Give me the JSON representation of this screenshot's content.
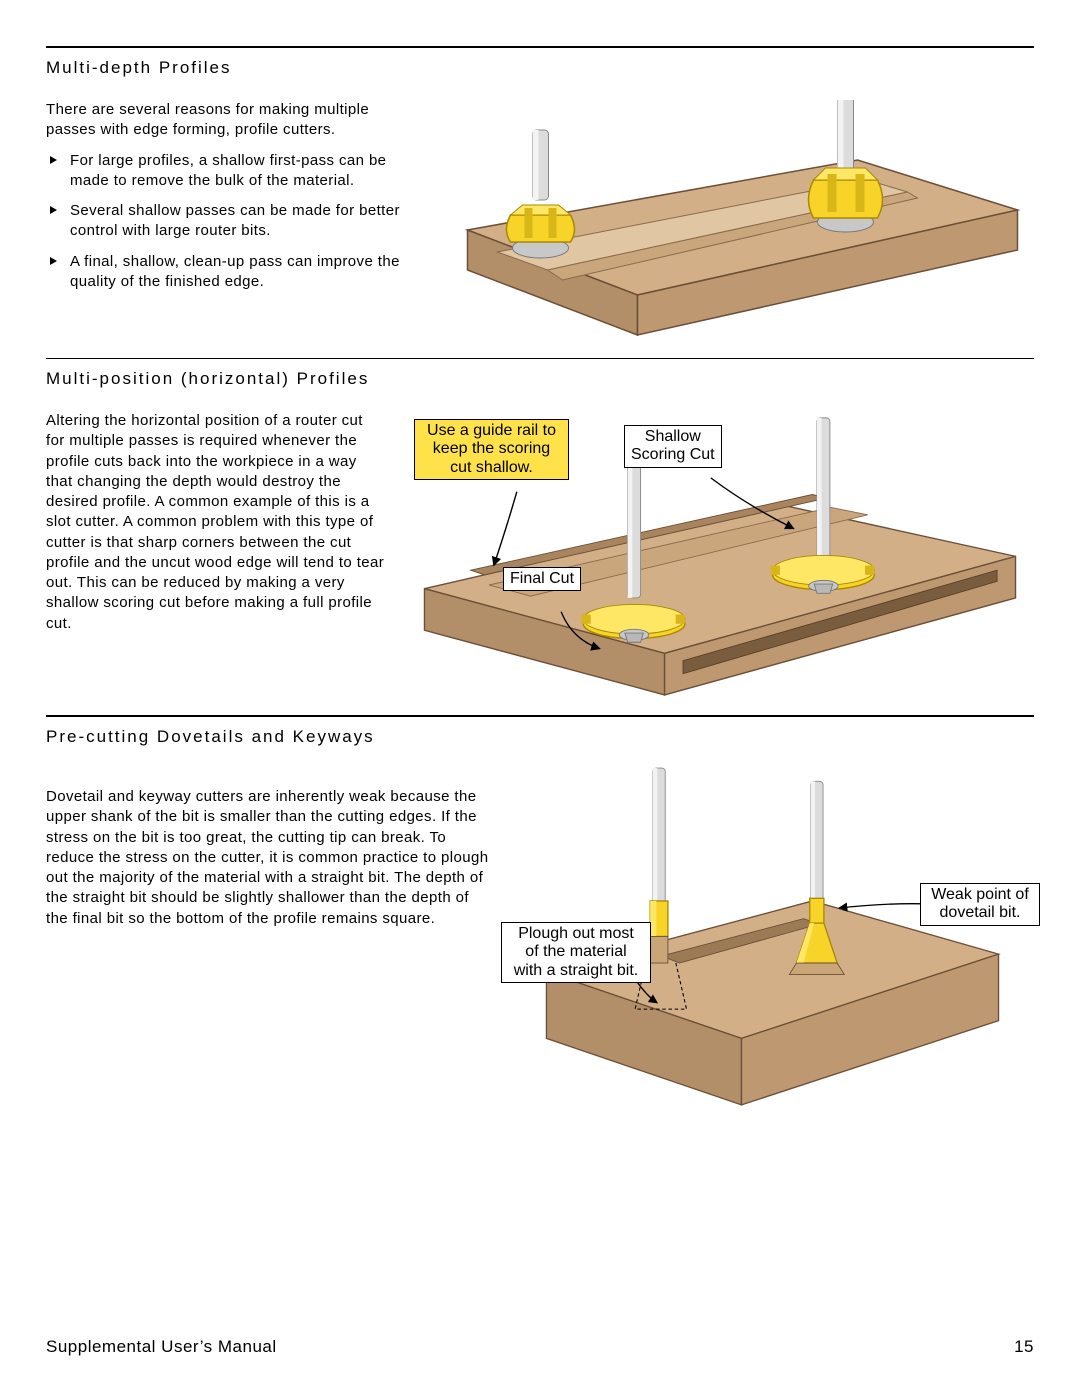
{
  "colors": {
    "wood_top": "#c7a683",
    "wood_top_light": "#d8b995",
    "wood_side": "#ae8b67",
    "wood_front": "#bb9772",
    "wood_cut": "#e0c6a2",
    "outline": "#6b4f36",
    "shank_grey": "#dcdcdc",
    "shank_shadow": "#a9a9a9",
    "cutter_yellow": "#f7d427",
    "cutter_yellow_dark": "#d8b618",
    "nut_grey": "#c8c8c8",
    "callout_yellow": "#ffe24a",
    "black": "#000000"
  },
  "section1": {
    "title": "Multi-depth Profiles",
    "intro": "There are several reasons for making multiple passes with edge forming, profile cutters.",
    "bullets": [
      "For large profiles, a shallow first-pass can be made to remove the bulk of the material.",
      "Several shallow passes can be made for better control with large router bits.",
      "A final, shallow, clean-up pass can improve the quality of the finished edge."
    ]
  },
  "section2": {
    "title": "Multi-position (horizontal) Profiles",
    "body": "Altering the horizontal position of a router cut for multiple passes is required whenever the profile cuts back into the workpiece in a way that changing the depth would destroy the desired profile. A common example of this is a slot cutter. A common problem with this type of cutter is that sharp corners between the cut profile and the uncut wood edge will tend to tear out. This can be reduced by making a very shallow scoring cut before making a full profile cut.",
    "callouts": {
      "guide": "Use a guide rail to\nkeep the scoring\ncut shallow.",
      "scoring": "Shallow\nScoring Cut",
      "final": "Final Cut"
    }
  },
  "section3": {
    "title": "Pre-cutting Dovetails and Keyways",
    "body": "Dovetail and keyway cutters are inherently weak because the upper shank of the bit is smaller than the cutting edges. If the stress on the bit is too great, the cutting tip can break. To reduce the stress on the cutter, it is common practice to plough out the majority of the material with a straight bit. The depth of the straight bit should be slightly shallower than the depth of the final bit so the bottom of the profile remains square.",
    "callouts": {
      "plough": "Plough out most\nof the material\nwith a straight bit.",
      "weak": "Weak point of\ndovetail bit."
    }
  },
  "footer": {
    "left": "Supplemental User’s Manual",
    "page": "15"
  }
}
